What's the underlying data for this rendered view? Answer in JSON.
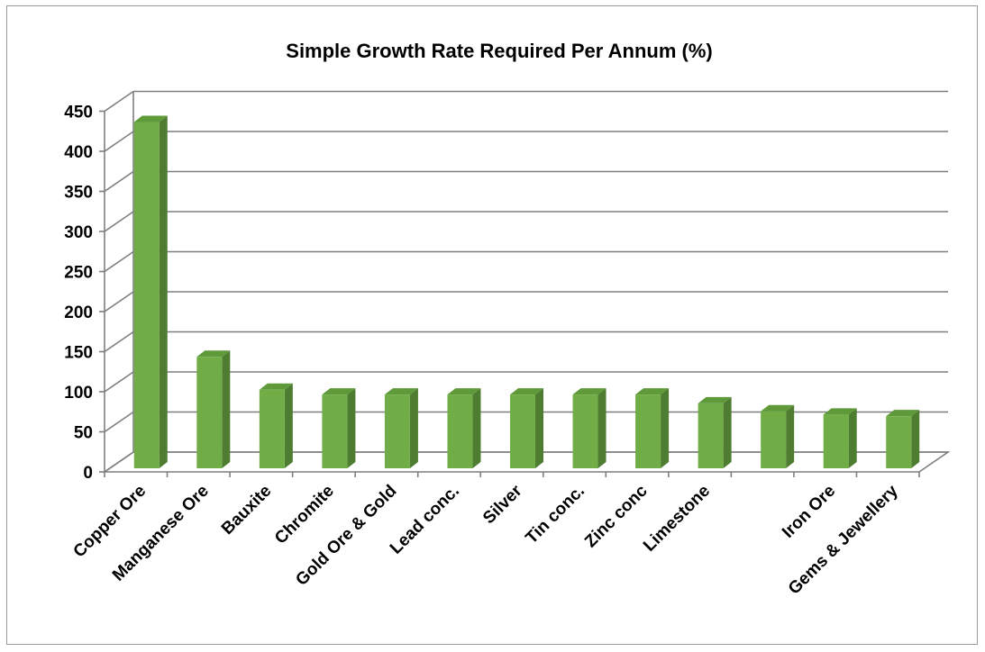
{
  "chart_data": {
    "type": "bar",
    "title": "Simple Growth Rate Required Per Annum (%)",
    "xlabel": "",
    "ylabel": "",
    "categories": [
      "Copper Ore",
      "Manganese Ore",
      "Bauxite",
      "Chromite",
      "Gold Ore & Gold",
      "Lead conc.",
      "Silver",
      "Tin conc.",
      "Zinc conc",
      "Limestone",
      "",
      "Iron Ore",
      "Gems & Jewellery"
    ],
    "values": [
      432,
      139,
      98,
      92,
      92,
      92,
      92,
      92,
      92,
      81,
      71,
      67,
      65
    ],
    "ylim": [
      0,
      450
    ],
    "yticks": [
      0,
      50,
      100,
      150,
      200,
      250,
      300,
      350,
      400,
      450
    ],
    "grid": true,
    "legend": "none",
    "style": "3d-column"
  },
  "colors": {
    "bar_front": "#70ad47",
    "bar_side": "#4e7d31",
    "bar_top": "#5f9a3a",
    "grid": "#7f7f7f",
    "frame": "#9a9a9a"
  }
}
